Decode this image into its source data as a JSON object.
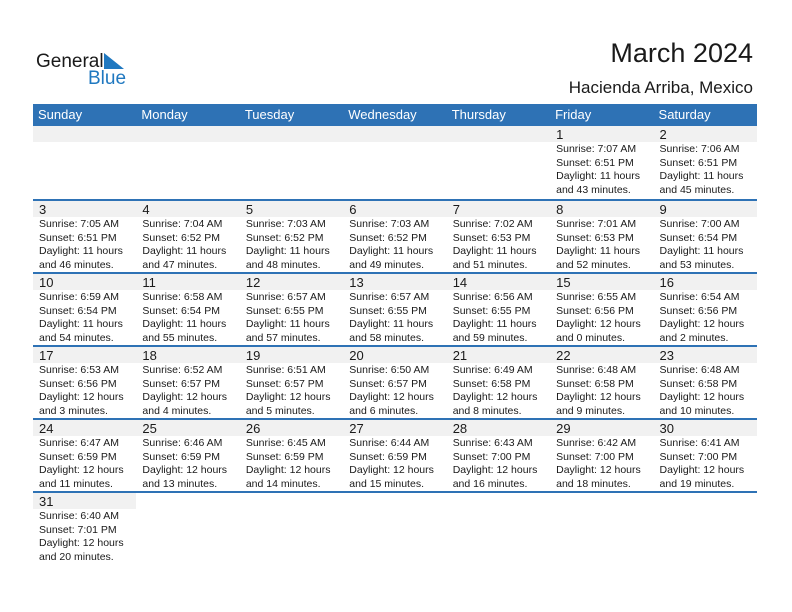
{
  "logo": {
    "line1": "General",
    "line2": "Blue",
    "accent": "#1f78c0"
  },
  "title": "March 2024",
  "location": "Hacienda Arriba, Mexico",
  "header_color": "#2e72b5",
  "days_of_week": [
    "Sunday",
    "Monday",
    "Tuesday",
    "Wednesday",
    "Thursday",
    "Friday",
    "Saturday"
  ],
  "weeks": [
    [
      null,
      null,
      null,
      null,
      null,
      {
        "day": "1",
        "sunrise": "Sunrise: 7:07 AM",
        "sunset": "Sunset: 6:51 PM",
        "daylight1": "Daylight: 11 hours",
        "daylight2": "and 43 minutes."
      },
      {
        "day": "2",
        "sunrise": "Sunrise: 7:06 AM",
        "sunset": "Sunset: 6:51 PM",
        "daylight1": "Daylight: 11 hours",
        "daylight2": "and 45 minutes."
      }
    ],
    [
      {
        "day": "3",
        "sunrise": "Sunrise: 7:05 AM",
        "sunset": "Sunset: 6:51 PM",
        "daylight1": "Daylight: 11 hours",
        "daylight2": "and 46 minutes."
      },
      {
        "day": "4",
        "sunrise": "Sunrise: 7:04 AM",
        "sunset": "Sunset: 6:52 PM",
        "daylight1": "Daylight: 11 hours",
        "daylight2": "and 47 minutes."
      },
      {
        "day": "5",
        "sunrise": "Sunrise: 7:03 AM",
        "sunset": "Sunset: 6:52 PM",
        "daylight1": "Daylight: 11 hours",
        "daylight2": "and 48 minutes."
      },
      {
        "day": "6",
        "sunrise": "Sunrise: 7:03 AM",
        "sunset": "Sunset: 6:52 PM",
        "daylight1": "Daylight: 11 hours",
        "daylight2": "and 49 minutes."
      },
      {
        "day": "7",
        "sunrise": "Sunrise: 7:02 AM",
        "sunset": "Sunset: 6:53 PM",
        "daylight1": "Daylight: 11 hours",
        "daylight2": "and 51 minutes."
      },
      {
        "day": "8",
        "sunrise": "Sunrise: 7:01 AM",
        "sunset": "Sunset: 6:53 PM",
        "daylight1": "Daylight: 11 hours",
        "daylight2": "and 52 minutes."
      },
      {
        "day": "9",
        "sunrise": "Sunrise: 7:00 AM",
        "sunset": "Sunset: 6:54 PM",
        "daylight1": "Daylight: 11 hours",
        "daylight2": "and 53 minutes."
      }
    ],
    [
      {
        "day": "10",
        "sunrise": "Sunrise: 6:59 AM",
        "sunset": "Sunset: 6:54 PM",
        "daylight1": "Daylight: 11 hours",
        "daylight2": "and 54 minutes."
      },
      {
        "day": "11",
        "sunrise": "Sunrise: 6:58 AM",
        "sunset": "Sunset: 6:54 PM",
        "daylight1": "Daylight: 11 hours",
        "daylight2": "and 55 minutes."
      },
      {
        "day": "12",
        "sunrise": "Sunrise: 6:57 AM",
        "sunset": "Sunset: 6:55 PM",
        "daylight1": "Daylight: 11 hours",
        "daylight2": "and 57 minutes."
      },
      {
        "day": "13",
        "sunrise": "Sunrise: 6:57 AM",
        "sunset": "Sunset: 6:55 PM",
        "daylight1": "Daylight: 11 hours",
        "daylight2": "and 58 minutes."
      },
      {
        "day": "14",
        "sunrise": "Sunrise: 6:56 AM",
        "sunset": "Sunset: 6:55 PM",
        "daylight1": "Daylight: 11 hours",
        "daylight2": "and 59 minutes."
      },
      {
        "day": "15",
        "sunrise": "Sunrise: 6:55 AM",
        "sunset": "Sunset: 6:56 PM",
        "daylight1": "Daylight: 12 hours",
        "daylight2": "and 0 minutes."
      },
      {
        "day": "16",
        "sunrise": "Sunrise: 6:54 AM",
        "sunset": "Sunset: 6:56 PM",
        "daylight1": "Daylight: 12 hours",
        "daylight2": "and 2 minutes."
      }
    ],
    [
      {
        "day": "17",
        "sunrise": "Sunrise: 6:53 AM",
        "sunset": "Sunset: 6:56 PM",
        "daylight1": "Daylight: 12 hours",
        "daylight2": "and 3 minutes."
      },
      {
        "day": "18",
        "sunrise": "Sunrise: 6:52 AM",
        "sunset": "Sunset: 6:57 PM",
        "daylight1": "Daylight: 12 hours",
        "daylight2": "and 4 minutes."
      },
      {
        "day": "19",
        "sunrise": "Sunrise: 6:51 AM",
        "sunset": "Sunset: 6:57 PM",
        "daylight1": "Daylight: 12 hours",
        "daylight2": "and 5 minutes."
      },
      {
        "day": "20",
        "sunrise": "Sunrise: 6:50 AM",
        "sunset": "Sunset: 6:57 PM",
        "daylight1": "Daylight: 12 hours",
        "daylight2": "and 6 minutes."
      },
      {
        "day": "21",
        "sunrise": "Sunrise: 6:49 AM",
        "sunset": "Sunset: 6:58 PM",
        "daylight1": "Daylight: 12 hours",
        "daylight2": "and 8 minutes."
      },
      {
        "day": "22",
        "sunrise": "Sunrise: 6:48 AM",
        "sunset": "Sunset: 6:58 PM",
        "daylight1": "Daylight: 12 hours",
        "daylight2": "and 9 minutes."
      },
      {
        "day": "23",
        "sunrise": "Sunrise: 6:48 AM",
        "sunset": "Sunset: 6:58 PM",
        "daylight1": "Daylight: 12 hours",
        "daylight2": "and 10 minutes."
      }
    ],
    [
      {
        "day": "24",
        "sunrise": "Sunrise: 6:47 AM",
        "sunset": "Sunset: 6:59 PM",
        "daylight1": "Daylight: 12 hours",
        "daylight2": "and 11 minutes."
      },
      {
        "day": "25",
        "sunrise": "Sunrise: 6:46 AM",
        "sunset": "Sunset: 6:59 PM",
        "daylight1": "Daylight: 12 hours",
        "daylight2": "and 13 minutes."
      },
      {
        "day": "26",
        "sunrise": "Sunrise: 6:45 AM",
        "sunset": "Sunset: 6:59 PM",
        "daylight1": "Daylight: 12 hours",
        "daylight2": "and 14 minutes."
      },
      {
        "day": "27",
        "sunrise": "Sunrise: 6:44 AM",
        "sunset": "Sunset: 6:59 PM",
        "daylight1": "Daylight: 12 hours",
        "daylight2": "and 15 minutes."
      },
      {
        "day": "28",
        "sunrise": "Sunrise: 6:43 AM",
        "sunset": "Sunset: 7:00 PM",
        "daylight1": "Daylight: 12 hours",
        "daylight2": "and 16 minutes."
      },
      {
        "day": "29",
        "sunrise": "Sunrise: 6:42 AM",
        "sunset": "Sunset: 7:00 PM",
        "daylight1": "Daylight: 12 hours",
        "daylight2": "and 18 minutes."
      },
      {
        "day": "30",
        "sunrise": "Sunrise: 6:41 AM",
        "sunset": "Sunset: 7:00 PM",
        "daylight1": "Daylight: 12 hours",
        "daylight2": "and 19 minutes."
      }
    ],
    [
      {
        "day": "31",
        "sunrise": "Sunrise: 6:40 AM",
        "sunset": "Sunset: 7:01 PM",
        "daylight1": "Daylight: 12 hours",
        "daylight2": "and 20 minutes."
      },
      null,
      null,
      null,
      null,
      null,
      null
    ]
  ]
}
